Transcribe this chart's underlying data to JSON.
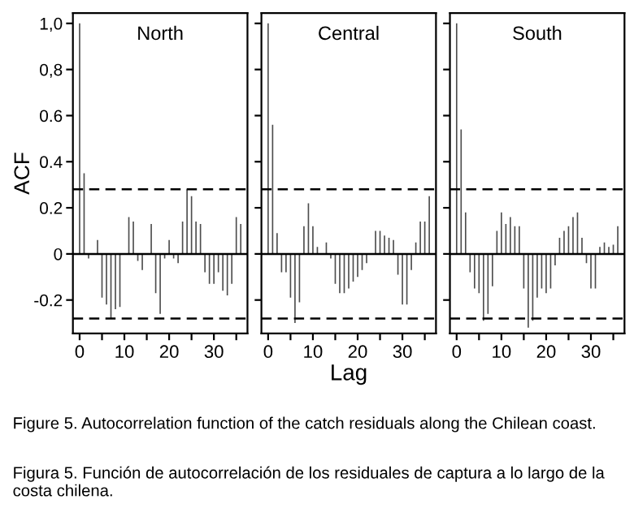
{
  "chart_data": [
    {
      "type": "bar",
      "title": "North",
      "ylabel": "ACF",
      "x": [
        0,
        1,
        2,
        3,
        4,
        5,
        6,
        7,
        8,
        9,
        10,
        11,
        12,
        13,
        14,
        15,
        16,
        17,
        18,
        19,
        20,
        21,
        22,
        23,
        24,
        25,
        26,
        27,
        28,
        29,
        30,
        31,
        32,
        33,
        34,
        35,
        36
      ],
      "values": [
        1.0,
        0.35,
        -0.02,
        null,
        0.06,
        -0.19,
        -0.22,
        -0.28,
        -0.24,
        -0.23,
        null,
        0.16,
        0.14,
        -0.03,
        -0.07,
        null,
        0.13,
        -0.17,
        -0.26,
        -0.02,
        0.06,
        -0.02,
        -0.04,
        0.14,
        0.28,
        0.25,
        0.14,
        0.13,
        -0.08,
        -0.13,
        -0.13,
        -0.08,
        -0.16,
        -0.18,
        -0.13,
        0.16,
        0.13
      ],
      "color": "#4d4d4d",
      "xlim": [
        -1.5,
        37.5
      ],
      "ylim": [
        -0.345,
        1.045
      ],
      "xticks": [
        0,
        {
          "value": 5,
          "label": null
        },
        10,
        {
          "value": 15,
          "label": null
        },
        20,
        {
          "value": 25,
          "label": null
        },
        30,
        {
          "value": 35,
          "label": null
        }
      ],
      "yticks": [
        {
          "value": -0.2,
          "label": "-0.2"
        },
        0,
        {
          "value": 0.2,
          "label": "0.2"
        },
        {
          "value": 0.4,
          "label": "0.4"
        },
        {
          "value": 0.6,
          "label": "0.6"
        },
        {
          "value": 0.8,
          "label": "0,8"
        },
        {
          "value": 1.0,
          "label": "1,0"
        }
      ],
      "ref_lines": [
        {
          "axis": "y",
          "value": 0.28,
          "color": "#000000",
          "line_style": "dashed"
        },
        {
          "axis": "y",
          "value": -0.28,
          "color": "#000000",
          "line_style": "dashed"
        },
        {
          "axis": "y",
          "value": 0,
          "color": "#000000",
          "line_style": "solid"
        }
      ],
      "grid": false,
      "annotations": [
        "Figure 5. Autocorrelation function of the catch residuals along the Chilean coast.",
        "Figura 5. Función de autocorrelación de los residuales de captura a lo largo de la costa chilena."
      ]
    },
    {
      "type": "bar",
      "title": "Central",
      "xlabel": "Lag",
      "x": [
        0,
        1,
        2,
        3,
        4,
        5,
        6,
        7,
        8,
        9,
        10,
        11,
        12,
        13,
        14,
        15,
        16,
        17,
        18,
        19,
        20,
        21,
        22,
        23,
        24,
        25,
        26,
        27,
        28,
        29,
        30,
        31,
        32,
        33,
        34,
        35,
        36
      ],
      "values": [
        1.0,
        0.56,
        0.09,
        -0.08,
        -0.08,
        -0.19,
        -0.3,
        -0.21,
        0.12,
        0.22,
        0.12,
        0.03,
        null,
        0.05,
        -0.02,
        -0.13,
        -0.17,
        -0.17,
        -0.15,
        -0.12,
        -0.1,
        -0.07,
        -0.04,
        null,
        0.1,
        0.1,
        0.08,
        0.07,
        0.06,
        -0.09,
        -0.22,
        -0.22,
        -0.07,
        0.05,
        0.14,
        0.14,
        0.25
      ],
      "color": "#4d4d4d",
      "xlim": [
        -1.5,
        37.5
      ],
      "ylim": [
        -0.345,
        1.045
      ],
      "xticks": [
        0,
        {
          "value": 5,
          "label": null
        },
        10,
        {
          "value": 15,
          "label": null
        },
        20,
        {
          "value": 25,
          "label": null
        },
        30,
        {
          "value": 35,
          "label": null
        }
      ],
      "yticks": [
        {
          "value": -0.2,
          "label": null
        },
        {
          "value": 0,
          "label": null
        },
        {
          "value": 0.2,
          "label": null
        },
        {
          "value": 0.4,
          "label": null
        },
        {
          "value": 0.6,
          "label": null
        },
        {
          "value": 0.8,
          "label": null
        },
        {
          "value": 1.0,
          "label": null
        }
      ],
      "tick_labels": "x",
      "ref_lines": [
        {
          "axis": "y",
          "value": 0.28,
          "color": "#000000",
          "line_style": "dashed"
        },
        {
          "axis": "y",
          "value": -0.28,
          "color": "#000000",
          "line_style": "dashed"
        },
        {
          "axis": "y",
          "value": 0,
          "color": "#000000",
          "line_style": "solid"
        }
      ],
      "grid": false
    },
    {
      "type": "bar",
      "title": "South",
      "x": [
        0,
        1,
        2,
        3,
        4,
        5,
        6,
        7,
        8,
        9,
        10,
        11,
        12,
        13,
        14,
        15,
        16,
        17,
        18,
        19,
        20,
        21,
        22,
        23,
        24,
        25,
        26,
        27,
        28,
        29,
        30,
        31,
        32,
        33,
        34,
        35,
        36
      ],
      "values": [
        1.0,
        0.54,
        0.18,
        -0.08,
        -0.15,
        -0.17,
        -0.29,
        -0.26,
        -0.14,
        0.1,
        0.18,
        0.13,
        0.16,
        0.12,
        0.12,
        -0.15,
        -0.32,
        -0.29,
        -0.19,
        -0.15,
        -0.17,
        -0.15,
        -0.05,
        0.07,
        0.1,
        0.12,
        0.16,
        0.18,
        0.07,
        -0.04,
        -0.15,
        -0.15,
        0.03,
        0.05,
        0.03,
        0.04,
        0.12
      ],
      "color": "#4d4d4d",
      "xlim": [
        -1.5,
        37.5
      ],
      "ylim": [
        -0.345,
        1.045
      ],
      "xticks": [
        0,
        {
          "value": 5,
          "label": null
        },
        10,
        {
          "value": 15,
          "label": null
        },
        20,
        {
          "value": 25,
          "label": null
        },
        30,
        {
          "value": 35,
          "label": null
        }
      ],
      "yticks": [
        {
          "value": -0.2,
          "label": null
        },
        {
          "value": 0,
          "label": null
        },
        {
          "value": 0.2,
          "label": null
        },
        {
          "value": 0.4,
          "label": null
        },
        {
          "value": 0.6,
          "label": null
        },
        {
          "value": 0.8,
          "label": null
        },
        {
          "value": 1.0,
          "label": null
        }
      ],
      "tick_labels": "x",
      "ref_lines": [
        {
          "axis": "y",
          "value": 0.28,
          "color": "#000000",
          "line_style": "dashed"
        },
        {
          "axis": "y",
          "value": -0.28,
          "color": "#000000",
          "line_style": "dashed"
        },
        {
          "axis": "y",
          "value": 0,
          "color": "#000000",
          "line_style": "solid"
        }
      ],
      "grid": false
    }
  ]
}
